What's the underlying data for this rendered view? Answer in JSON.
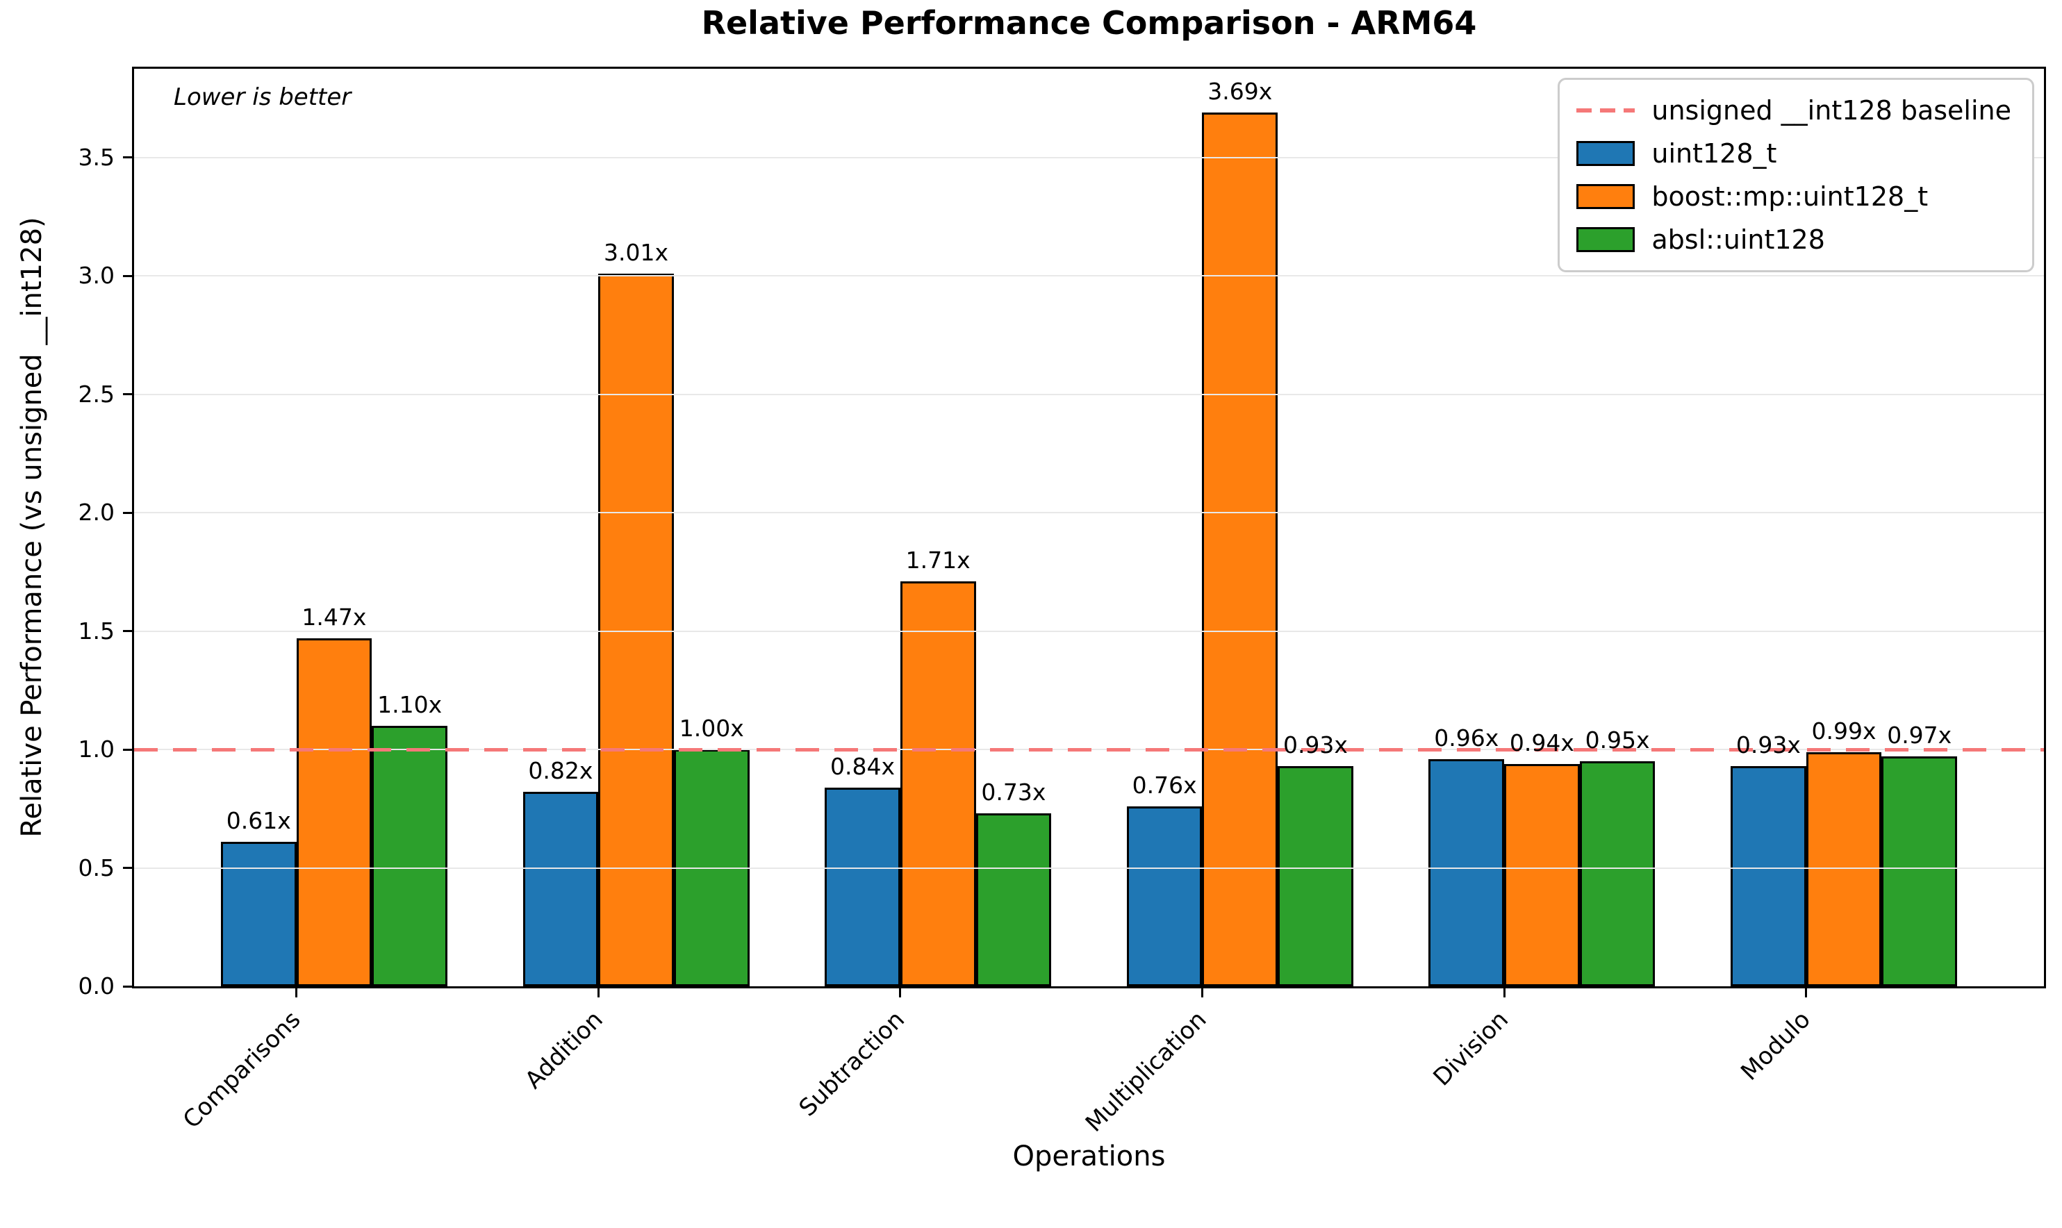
{
  "chart_data": {
    "type": "bar",
    "title": "Relative Performance Comparison - ARM64",
    "note": "Lower is better",
    "xlabel": "Operations",
    "ylabel": "Relative Performance (vs unsigned __int128)",
    "categories": [
      "Comparisons",
      "Addition",
      "Subtraction",
      "Multiplication",
      "Division",
      "Modulo"
    ],
    "series": [
      {
        "name": "uint128_t",
        "color": "#1f77b4",
        "values": [
          0.61,
          0.82,
          0.84,
          0.76,
          0.96,
          0.93
        ]
      },
      {
        "name": "boost::mp::uint128_t",
        "color": "#ff7f0e",
        "values": [
          1.47,
          3.01,
          1.71,
          3.69,
          0.94,
          0.99
        ]
      },
      {
        "name": "absl::uint128",
        "color": "#2ca02c",
        "values": [
          1.1,
          1.0,
          0.73,
          0.93,
          0.95,
          0.97
        ]
      }
    ],
    "baseline": {
      "value": 1.0,
      "label": "unsigned __int128 baseline",
      "color": "#f57878",
      "style": "dashed"
    },
    "value_suffix": "x",
    "yticks": [
      0.0,
      0.5,
      1.0,
      1.5,
      2.0,
      2.5,
      3.0,
      3.5
    ],
    "ylim": [
      0,
      3.875
    ],
    "grid": true,
    "legend_position": "upper right",
    "colors": {
      "grid": "#e8e8e8",
      "bar_edge": "#000000",
      "spine": "#000000",
      "text": "#000000",
      "legend_border": "#cccccc",
      "background": "#ffffff"
    }
  }
}
